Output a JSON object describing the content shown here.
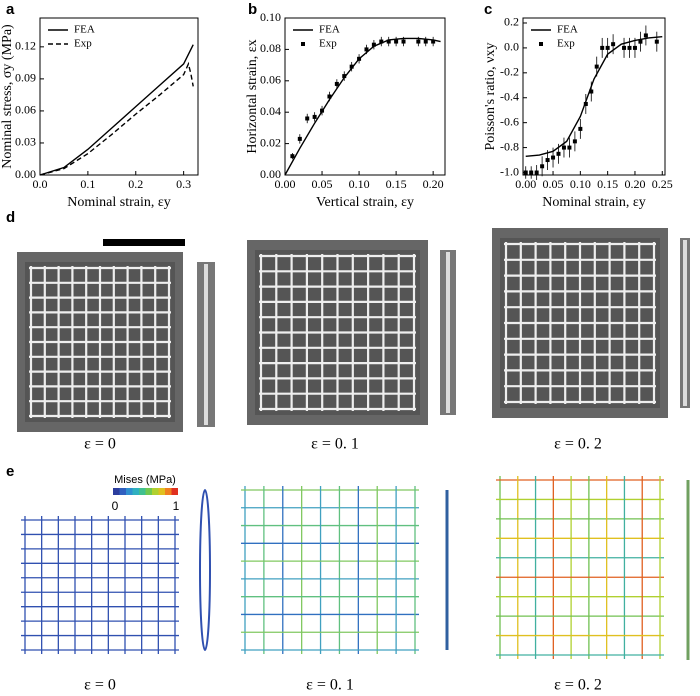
{
  "panel_labels": [
    "a",
    "b",
    "c",
    "d",
    "e"
  ],
  "chart_data": [
    {
      "type": "line",
      "xlabel": "Nominal strain, εy",
      "ylabel": "Nominal stress, σy (MPa)",
      "xlim": [
        0,
        0.33
      ],
      "ylim": [
        0,
        0.147
      ],
      "xticks": [
        {
          "value": 0,
          "label": "0.0"
        },
        0.1,
        0.2,
        0.3
      ],
      "yticks": [
        {
          "value": 0,
          "label": "0.00"
        },
        0.03,
        0.06,
        0.09,
        0.12
      ],
      "legend": "upper left",
      "series": [
        {
          "name": "FEA",
          "color": "#000000",
          "style": "solid",
          "x": [
            0,
            0.05,
            0.1,
            0.15,
            0.2,
            0.25,
            0.3,
            0.32
          ],
          "values": [
            0,
            0.007,
            0.024,
            0.044,
            0.064,
            0.084,
            0.104,
            0.122
          ]
        },
        {
          "name": "Exp",
          "color": "#000000",
          "style": "dashed",
          "x": [
            0,
            0.05,
            0.1,
            0.15,
            0.2,
            0.25,
            0.3,
            0.31,
            0.315,
            0.32
          ],
          "values": [
            0,
            0.006,
            0.02,
            0.038,
            0.057,
            0.075,
            0.094,
            0.104,
            0.095,
            0.083
          ]
        }
      ]
    },
    {
      "type": "line",
      "xlabel": "Vertical strain, εy",
      "ylabel": "Horizontal strain, εx",
      "xlim": [
        0,
        0.216
      ],
      "ylim": [
        0,
        0.1
      ],
      "xticks": [
        {
          "value": 0,
          "label": "0.00"
        },
        0.05,
        {
          "value": 0.1,
          "label": "0.10"
        },
        0.15,
        {
          "value": 0.2,
          "label": "0.20"
        }
      ],
      "yticks": [
        {
          "value": 0,
          "label": "0.00"
        },
        0.02,
        0.04,
        0.06,
        0.08,
        {
          "value": 0.1,
          "label": "0.10"
        }
      ],
      "legend": "upper left",
      "series": [
        {
          "name": "FEA",
          "color": "#000000",
          "style": "solid",
          "x": [
            0,
            0.02,
            0.04,
            0.06,
            0.08,
            0.1,
            0.12,
            0.14,
            0.16,
            0.18,
            0.2,
            0.21
          ],
          "values": [
            0,
            0.017,
            0.033,
            0.048,
            0.062,
            0.074,
            0.082,
            0.086,
            0.087,
            0.087,
            0.086,
            0.085
          ]
        },
        {
          "name": "Exp",
          "color": "#000000",
          "style": "marker",
          "x": [
            0.01,
            0.02,
            0.03,
            0.04,
            0.05,
            0.06,
            0.07,
            0.08,
            0.09,
            0.1,
            0.11,
            0.12,
            0.13,
            0.14,
            0.15,
            0.16,
            0.18,
            0.19,
            0.2
          ],
          "values": [
            0.012,
            0.023,
            0.036,
            0.037,
            0.041,
            0.05,
            0.058,
            0.063,
            0.069,
            0.074,
            0.08,
            0.083,
            0.085,
            0.085,
            0.085,
            0.085,
            0.085,
            0.085,
            0.085
          ],
          "errors": [
            0.002,
            0.003,
            0.003,
            0.003,
            0.003,
            0.003,
            0.003,
            0.003,
            0.003,
            0.003,
            0.003,
            0.003,
            0.003,
            0.003,
            0.003,
            0.003,
            0.003,
            0.003,
            0.003
          ]
        }
      ]
    },
    {
      "type": "line",
      "xlabel": "Nominal strain, εy",
      "ylabel": "Poisson's ratio, νxy",
      "xlim": [
        -0.005,
        0.255
      ],
      "ylim": [
        -1.02,
        0.24
      ],
      "xticks": [
        {
          "value": 0,
          "label": "0.00"
        },
        0.05,
        {
          "value": 0.1,
          "label": "0.10"
        },
        0.15,
        {
          "value": 0.2,
          "label": "0.20"
        },
        0.25
      ],
      "yticks": [
        {
          "value": -1,
          "label": "-1.0"
        },
        {
          "value": -0.8,
          "label": "-0.8"
        },
        {
          "value": -0.6,
          "label": "-0.6"
        },
        {
          "value": -0.4,
          "label": "-0.4"
        },
        {
          "value": -0.2,
          "label": "-0.2"
        },
        {
          "value": 0,
          "label": "0.0"
        },
        0.2
      ],
      "legend": "upper left",
      "series": [
        {
          "name": "FEA",
          "color": "#000000",
          "style": "solid",
          "x": [
            0,
            0.025,
            0.05,
            0.075,
            0.1,
            0.125,
            0.15,
            0.175,
            0.2,
            0.225,
            0.25
          ],
          "values": [
            -0.87,
            -0.86,
            -0.83,
            -0.75,
            -0.55,
            -0.25,
            -0.05,
            0.03,
            0.06,
            0.08,
            0.09
          ]
        },
        {
          "name": "Exp",
          "color": "#000000",
          "style": "marker",
          "x": [
            0,
            0.01,
            0.02,
            0.03,
            0.04,
            0.05,
            0.06,
            0.07,
            0.08,
            0.09,
            0.1,
            0.11,
            0.12,
            0.13,
            0.14,
            0.15,
            0.16,
            0.18,
            0.19,
            0.2,
            0.21,
            0.22,
            0.24
          ],
          "values": [
            -1,
            -1,
            -1,
            -0.95,
            -0.9,
            -0.88,
            -0.85,
            -0.8,
            -0.8,
            -0.75,
            -0.65,
            -0.45,
            -0.35,
            -0.15,
            0,
            0,
            0.03,
            0,
            0,
            0,
            0.05,
            0.1,
            0.05
          ],
          "errors": [
            0.05,
            0.05,
            0.06,
            0.08,
            0.08,
            0.08,
            0.08,
            0.08,
            0.08,
            0.08,
            0.08,
            0.08,
            0.08,
            0.08,
            0.08,
            0.08,
            0.08,
            0.08,
            0.08,
            0.08,
            0.08,
            0.08,
            0.08
          ]
        }
      ]
    }
  ],
  "panel_d": {
    "captions": [
      "ε = 0",
      "ε = 0. 1",
      "ε = 0. 2"
    ]
  },
  "panel_e": {
    "colorbar_title": "Mises (MPa)",
    "colorbar_min": "0",
    "colorbar_max": "1",
    "captions": [
      "ε = 0",
      "ε = 0. 1",
      "ε = 0. 2"
    ]
  }
}
